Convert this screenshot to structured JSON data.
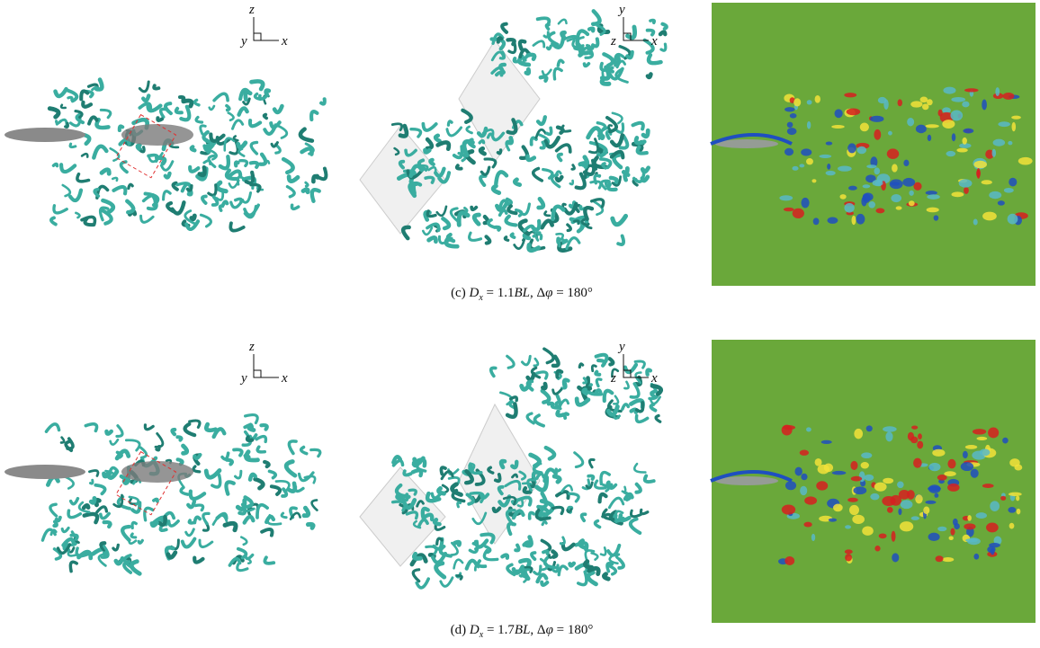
{
  "rows": [
    {
      "side_axes": {
        "up": "z",
        "out": "y",
        "right": "x"
      },
      "top_axes": {
        "up": "y",
        "out": "z",
        "right": "x"
      },
      "caption": {
        "label": "(c) ",
        "var": "D",
        "sub": "x",
        "mid": " = 1.1",
        "unit": "BL",
        "tail": ", Δ",
        "phi": "φ",
        "end": " = 180°"
      }
    },
    {
      "side_axes": {
        "up": "z",
        "out": "y",
        "right": "x"
      },
      "top_axes": {
        "up": "y",
        "out": "z",
        "right": "x"
      },
      "caption": {
        "label": "(d) ",
        "var": "D",
        "sub": "x",
        "mid": " = 1.7",
        "unit": "BL",
        "tail": ", Δ",
        "phi": "φ",
        "end": " = 180°"
      }
    }
  ]
}
